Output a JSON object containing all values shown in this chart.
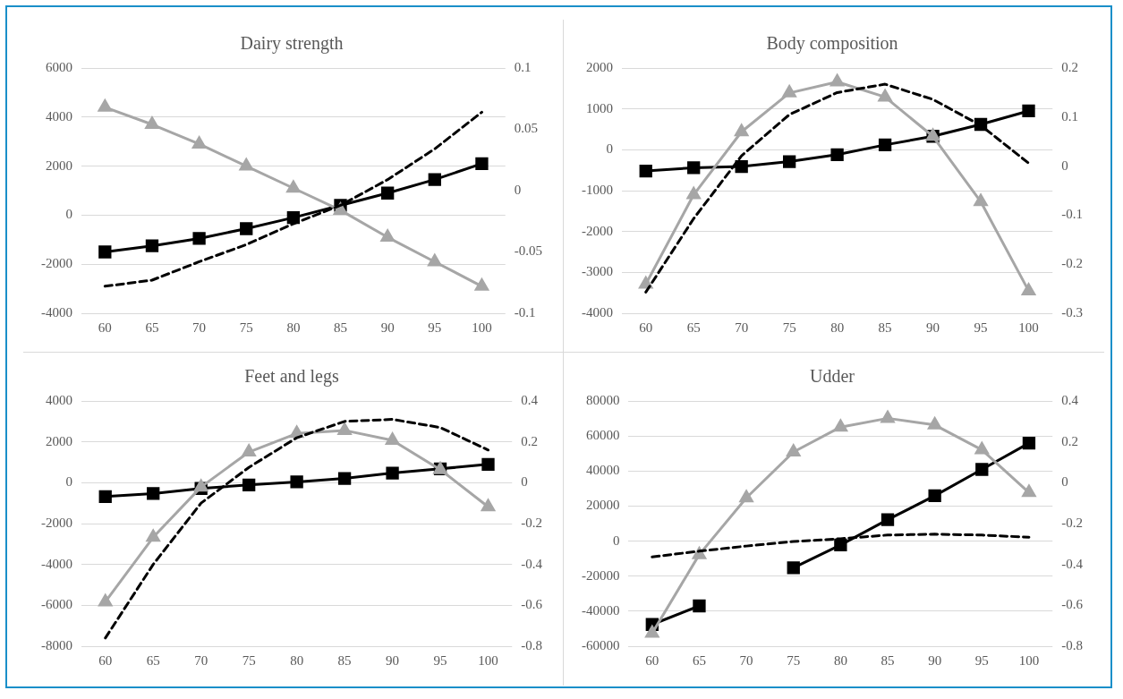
{
  "chart_data": [
    {
      "type": "line",
      "title": "Dairy strength",
      "categories": [
        "60",
        "65",
        "70",
        "75",
        "80",
        "85",
        "90",
        "95",
        "100"
      ],
      "grid": "y",
      "ylim": [
        -4000,
        6000
      ],
      "yticks": [
        -4000,
        -2000,
        0,
        2000,
        4000,
        6000
      ],
      "y2lim": [
        -0.1,
        0.1
      ],
      "y2ticks": [
        -0.1,
        -0.05,
        0,
        0.05,
        0.1
      ],
      "series": [
        {
          "color": "#000000",
          "marker": "square",
          "line_style": "solid",
          "values": [
            -1500,
            -1250,
            -950,
            -550,
            -100,
            400,
            900,
            1450,
            2100
          ]
        },
        {
          "color": "#a6a6a6",
          "marker": "triangle",
          "line_style": "solid",
          "values": [
            4400,
            3700,
            2900,
            2000,
            1100,
            200,
            -900,
            -1900,
            -2900
          ]
        },
        {
          "color": "#000000",
          "marker": "none",
          "line_style": "dashed",
          "axis": "y2",
          "values": [
            -0.078,
            -0.073,
            -0.058,
            -0.044,
            -0.027,
            -0.012,
            0.009,
            0.034,
            0.064
          ]
        }
      ]
    },
    {
      "type": "line",
      "title": "Body composition",
      "categories": [
        "60",
        "65",
        "70",
        "75",
        "80",
        "85",
        "90",
        "95",
        "100"
      ],
      "grid": "y",
      "ylim": [
        -4000,
        2000
      ],
      "yticks": [
        -4000,
        -3000,
        -2000,
        -1000,
        0,
        1000,
        2000
      ],
      "y2lim": [
        -0.3,
        0.2
      ],
      "y2ticks": [
        -0.3,
        -0.2,
        -0.1,
        0,
        0.1,
        0.2
      ],
      "series": [
        {
          "color": "#000000",
          "marker": "square",
          "line_style": "solid",
          "values": [
            -520,
            -440,
            -410,
            -290,
            -120,
            120,
            330,
            620,
            950
          ]
        },
        {
          "color": "#a6a6a6",
          "marker": "triangle",
          "line_style": "solid",
          "values": [
            -3290,
            -1100,
            440,
            1390,
            1660,
            1290,
            330,
            -1270,
            -3450
          ]
        },
        {
          "color": "#000000",
          "marker": "none",
          "line_style": "dashed",
          "axis": "y2",
          "values": [
            -0.257,
            -0.107,
            0.021,
            0.105,
            0.15,
            0.167,
            0.136,
            0.083,
            0.006
          ]
        }
      ]
    },
    {
      "type": "line",
      "title": "Feet and legs",
      "categories": [
        "60",
        "65",
        "70",
        "75",
        "80",
        "85",
        "90",
        "95",
        "100"
      ],
      "grid": "y",
      "ylim": [
        -8000,
        4000
      ],
      "yticks": [
        -8000,
        -6000,
        -4000,
        -2000,
        0,
        2000,
        4000
      ],
      "y2lim": [
        -0.8,
        0.4
      ],
      "y2ticks": [
        -0.8,
        -0.6,
        -0.4,
        -0.2,
        0,
        0.2,
        0.4
      ],
      "series": [
        {
          "color": "#000000",
          "marker": "square",
          "line_style": "solid",
          "values": [
            -680,
            -530,
            -280,
            -110,
            40,
            210,
            470,
            680,
            900
          ]
        },
        {
          "color": "#a6a6a6",
          "marker": "triangle",
          "line_style": "solid",
          "values": [
            -5830,
            -2670,
            -210,
            1500,
            2410,
            2560,
            2070,
            640,
            -1180
          ]
        },
        {
          "color": "#000000",
          "marker": "none",
          "line_style": "dashed",
          "axis": "y2",
          "values": [
            -0.76,
            -0.4,
            -0.1,
            0.075,
            0.22,
            0.3,
            0.31,
            0.27,
            0.16
          ]
        }
      ]
    },
    {
      "type": "line",
      "title": "Udder",
      "categories": [
        "60",
        "65",
        "70",
        "75",
        "80",
        "85",
        "90",
        "95",
        "100"
      ],
      "grid": "y",
      "ylim": [
        -60000,
        80000
      ],
      "yticks": [
        -60000,
        -40000,
        -20000,
        0,
        20000,
        40000,
        60000,
        80000
      ],
      "y2lim": [
        -0.8,
        0.4
      ],
      "y2ticks": [
        -0.8,
        -0.6,
        -0.4,
        -0.2,
        0,
        0.2,
        0.4
      ],
      "series": [
        {
          "color": "#000000",
          "marker": "square",
          "line_style": "solid",
          "values": [
            -47600,
            -37000,
            null,
            -15200,
            -2200,
            12200,
            25900,
            40900,
            55900
          ]
        },
        {
          "color": "#a6a6a6",
          "marker": "triangle",
          "line_style": "solid",
          "values": [
            -52600,
            -7700,
            24700,
            50900,
            65100,
            70100,
            66300,
            52100,
            27700
          ]
        },
        {
          "color": "#000000",
          "marker": "none",
          "line_style": "dashed",
          "axis": "y2",
          "values": [
            -0.363,
            -0.335,
            -0.31,
            -0.288,
            -0.274,
            -0.256,
            -0.252,
            -0.256,
            -0.267
          ]
        }
      ]
    }
  ]
}
